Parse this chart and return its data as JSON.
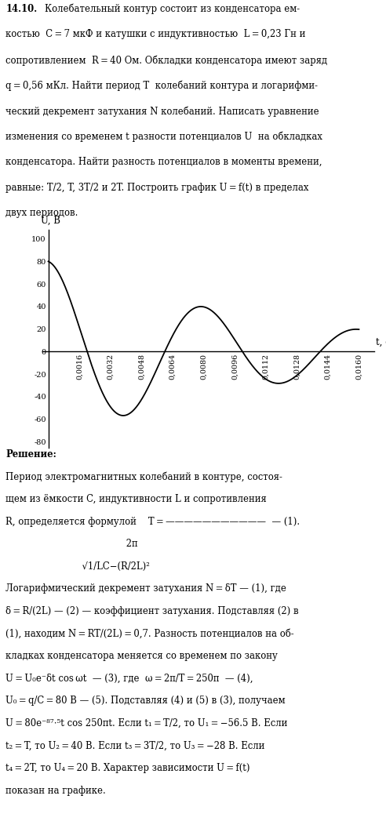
{
  "title_number": "14.10.",
  "bg_color": "#ffffff",
  "text_color": "#000000",
  "curve_color": "#000000",
  "U0": 80,
  "delta": 87.5,
  "t_max": 0.016,
  "graph_xlim": [
    -0.0003,
    0.0168
  ],
  "graph_ylim": [
    -85,
    108
  ],
  "graph_xticks": [
    0.0016,
    0.0032,
    0.0048,
    0.0064,
    0.008,
    0.0096,
    0.0112,
    0.0128,
    0.0144,
    0.016
  ],
  "graph_yticks": [
    -80,
    -60,
    -40,
    -20,
    0,
    20,
    40,
    60,
    80,
    100
  ],
  "graph_ylabel": "U, B",
  "graph_xlabel": "t, c",
  "top_lines": [
    [
      true,
      " 14.10. ",
      "Колебательный контур состоит из конденсатора ем-"
    ],
    [
      false,
      "",
      "костью  C = 7 мкФ и катушки с индуктивностью  L = 0,23 Гн и"
    ],
    [
      false,
      "",
      "сопротивлением  R = 40 Ом. Обкладки конденсатора имеют заряд"
    ],
    [
      false,
      "",
      "q = 0,56 мКл. Найти период T  колебаний контура и логарифми-"
    ],
    [
      false,
      "",
      "ческий декремент затухания N колебаний. Написать уравнение"
    ],
    [
      false,
      "",
      "изменения со временем t разности потенциалов U  на обкладках"
    ],
    [
      false,
      "",
      "конденсатора. Найти разность потенциалов в моменты времени,"
    ],
    [
      false,
      "",
      "равные: T/2, T, 3T/2 и 2T. Построить график U = f(t) в пределах"
    ],
    [
      false,
      "",
      "двух периодов."
    ]
  ],
  "sol_lines": [
    [
      "bold",
      "Решение:"
    ],
    [
      "normal",
      "Период электромагнитных колебаний в контуре, состоя-"
    ],
    [
      "normal",
      "щем из ёмкости C, индуктивности L и сопротивления"
    ],
    [
      "normal",
      "R, определяется формулой    T = ———————————  — (1)."
    ],
    [
      "normal",
      "                                         2π"
    ],
    [
      "normal",
      "                          √1/LC−(R/2L)²"
    ],
    [
      "normal",
      "Логарифмический декремент затухания N = δT — (1), где"
    ],
    [
      "normal",
      "δ = R/(2L) — (2) — коэффициент затухания. Подставляя (2) в"
    ],
    [
      "normal",
      "(1), находим N = RT/(2L) = 0,7. Разность потенциалов на об-"
    ],
    [
      "normal",
      "кладках конденсатора меняется со временем по закону"
    ],
    [
      "normal",
      "U = U₀e⁻δt cos ωt  — (3), где  ω = 2π/T = 250π  — (4),"
    ],
    [
      "normal",
      "U₀ = q/C = 80 В — (5). Подставляя (4) и (5) в (3), получаем"
    ],
    [
      "normal",
      "U = 80e⁻⁸⁷⋅⁵t cos 250πt. Если t₁ = T/2, то U₁ = −56.5 В. Если"
    ],
    [
      "normal",
      "t₂ = T, то U₂ = 40 В. Если t₃ = 3T/2, то U₃ = −28 В. Если"
    ],
    [
      "normal",
      "t₄ = 2T, то U₄ = 20 В. Характер зависимости U = f(t)"
    ],
    [
      "normal",
      "показан на графике."
    ]
  ]
}
